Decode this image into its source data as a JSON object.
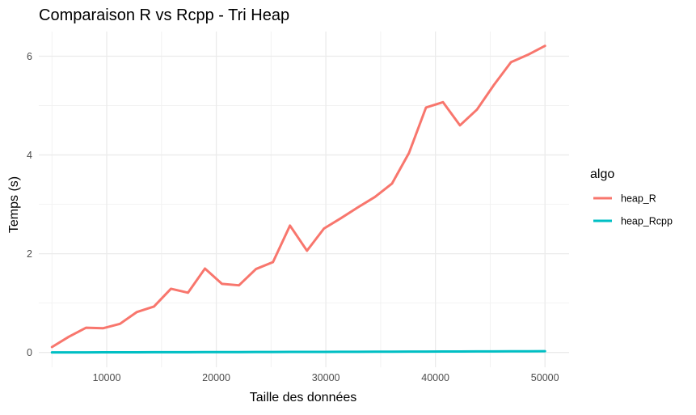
{
  "chart_data": {
    "type": "line",
    "title": "Comparaison R vs Rcpp - Tri Heap",
    "xlabel": "Taille des données",
    "ylabel": "Temps (s)",
    "xlim": [
      3800,
      52200
    ],
    "ylim": [
      -0.3,
      6.5
    ],
    "xticks": [
      10000,
      20000,
      30000,
      40000,
      50000
    ],
    "yticks": [
      0,
      2,
      4,
      6
    ],
    "x_minor_gridlines": [
      5000,
      15000,
      25000,
      35000,
      45000
    ],
    "y_minor_gridlines": [
      1,
      3,
      5
    ],
    "grid": true,
    "legend": {
      "title": "algo",
      "position": "right"
    },
    "series": [
      {
        "name": "heap_R",
        "color": "#F8766D",
        "x": [
          5000,
          6551.72,
          8103.45,
          9655.17,
          11206.9,
          12758.62,
          14310.34,
          15862.07,
          17413.79,
          18965.52,
          20517.24,
          22068.97,
          23620.69,
          25172.41,
          26724.14,
          28275.86,
          29827.59,
          31379.31,
          32931.03,
          34482.76,
          36034.48,
          37586.21,
          39137.93,
          40689.66,
          42241.38,
          43793.1,
          45344.83,
          46896.55,
          48448.28,
          50000
        ],
        "values": [
          0.11,
          0.32,
          0.5,
          0.49,
          0.58,
          0.82,
          0.93,
          1.29,
          1.21,
          1.7,
          1.39,
          1.36,
          1.69,
          1.83,
          2.57,
          2.06,
          2.51,
          2.72,
          2.94,
          3.15,
          3.42,
          4.04,
          4.96,
          5.07,
          4.6,
          4.92,
          5.42,
          5.88,
          6.03,
          6.21
        ]
      },
      {
        "name": "heap_Rcpp",
        "color": "#00BFC4",
        "x": [
          5000,
          6551.72,
          8103.45,
          9655.17,
          11206.9,
          12758.62,
          14310.34,
          15862.07,
          17413.79,
          18965.52,
          20517.24,
          22068.97,
          23620.69,
          25172.41,
          26724.14,
          28275.86,
          29827.59,
          31379.31,
          32931.03,
          34482.76,
          36034.48,
          37586.21,
          39137.93,
          40689.66,
          42241.38,
          43793.1,
          45344.83,
          46896.55,
          48448.28,
          50000
        ],
        "values": [
          0.001,
          0.002,
          0.002,
          0.003,
          0.003,
          0.004,
          0.005,
          0.005,
          0.006,
          0.007,
          0.008,
          0.008,
          0.009,
          0.01,
          0.011,
          0.011,
          0.012,
          0.013,
          0.014,
          0.015,
          0.016,
          0.017,
          0.018,
          0.019,
          0.02,
          0.021,
          0.022,
          0.023,
          0.024,
          0.026
        ]
      }
    ]
  }
}
